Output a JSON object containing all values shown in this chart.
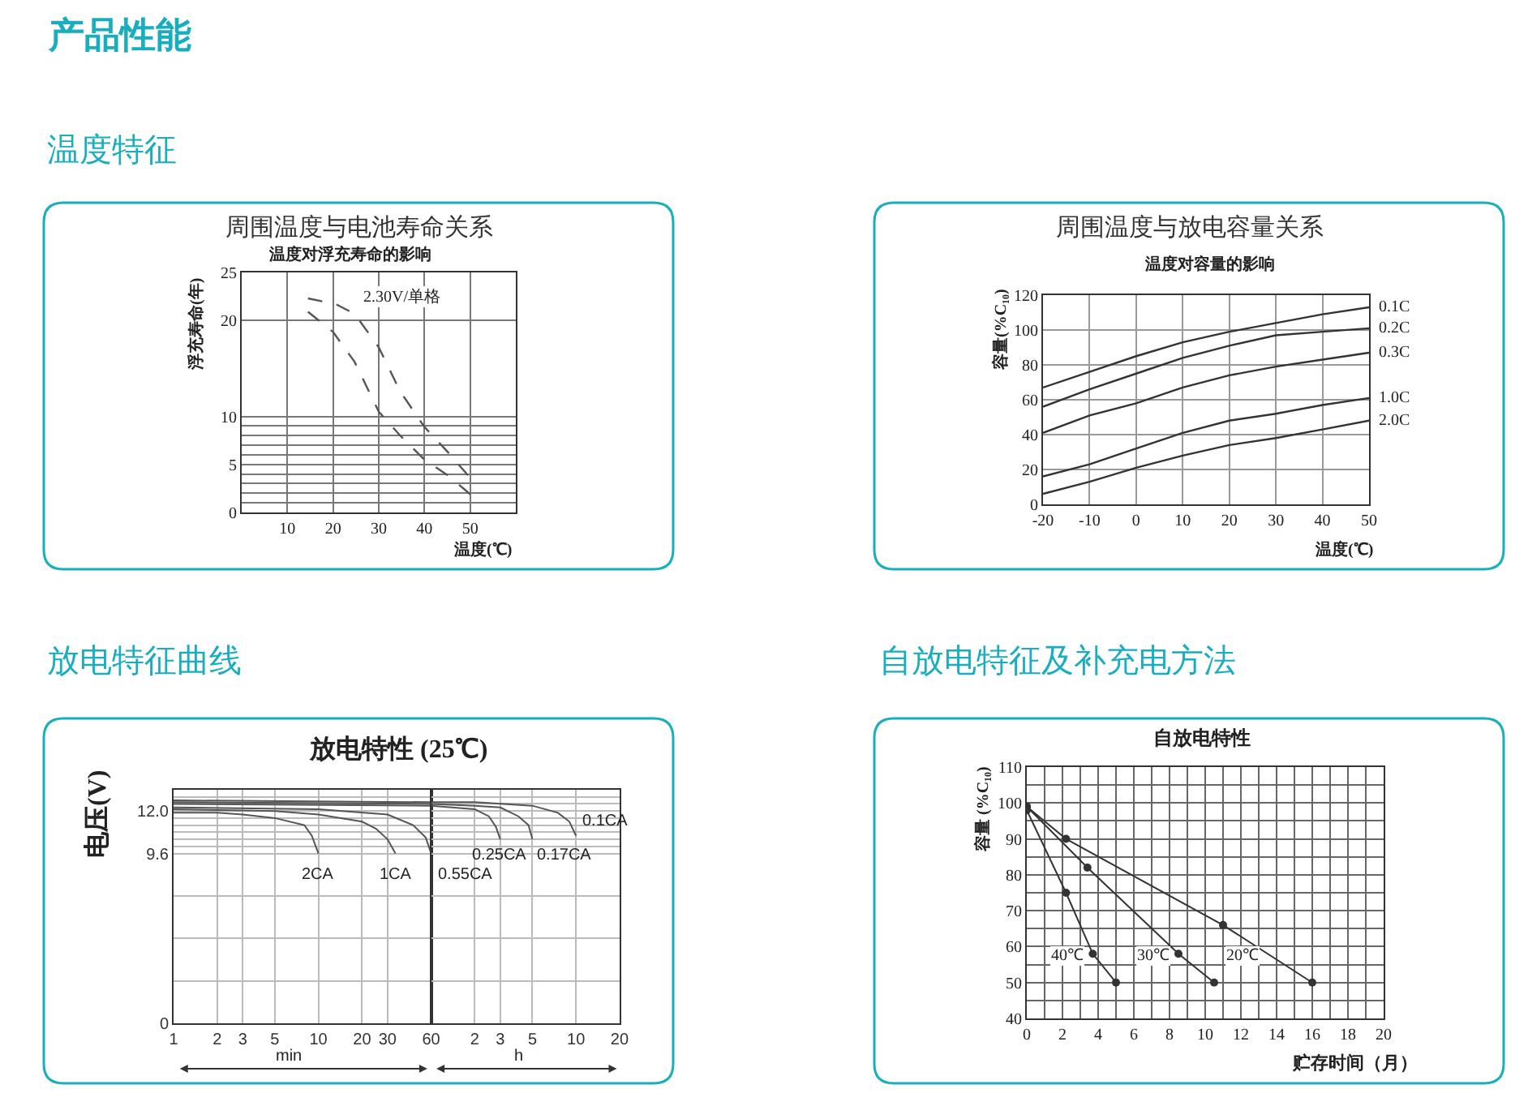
{
  "chart_data": [
    {
      "type": "line",
      "title": "周围温度与电池寿命关系",
      "subtitle": "温度对浮充寿命的影响",
      "xlabel": "温度(℃)",
      "ylabel": "浮充寿命(年)",
      "annotations": [
        "产品性能",
        "温度特征"
      ],
      "series": [
        {
          "name": "2.30V/单格",
          "color": "#555555",
          "x": [
            14.5,
            20.6,
            24.7,
            30,
            34.7,
            40,
            45.3,
            50
          ],
          "values": [
            22.3,
            21.7,
            20.7,
            17.2,
            12.6,
            8.9,
            6.2,
            3.6
          ]
        },
        {
          "color": "#555555",
          "x": [
            14.5,
            20,
            24.7,
            30,
            34.7,
            40,
            45.3,
            50
          ],
          "values": [
            20.9,
            18.8,
            15.7,
            10.5,
            8.0,
            5.5,
            3.8,
            1.9
          ]
        }
      ],
      "xlim": [
        0,
        60
      ],
      "xticks": [
        10,
        20,
        30,
        40,
        50
      ],
      "ylim": [
        0,
        25
      ],
      "yticks": [
        0,
        {
          "value": 1,
          "label": null
        },
        {
          "value": 2,
          "label": null
        },
        {
          "value": 3,
          "label": null
        },
        {
          "value": 4,
          "label": null
        },
        5,
        {
          "value": 6,
          "label": null
        },
        {
          "value": 7,
          "label": null
        },
        {
          "value": 8,
          "label": null
        },
        {
          "value": 9,
          "label": null
        },
        10,
        20,
        25
      ],
      "grid": true,
      "line_style": "dashed"
    },
    {
      "type": "line",
      "title": "周围温度与放电容量关系",
      "subtitle": "温度对容量的影响",
      "xlabel": "温度(℃)",
      "ylabel": "容量(%C₁₀)",
      "x": [
        -20,
        -10,
        0,
        10,
        20,
        30,
        40,
        50
      ],
      "series": [
        {
          "name": "0.1C",
          "color": "#333333",
          "values": [
            67,
            76,
            85,
            93,
            99,
            104,
            109,
            113
          ]
        },
        {
          "name": "0.2C",
          "color": "#333333",
          "values": [
            56,
            66,
            75,
            84,
            91,
            97,
            99,
            101
          ]
        },
        {
          "name": "0.3C",
          "color": "#333333",
          "values": [
            41,
            51,
            58,
            67,
            74,
            79,
            83,
            87
          ]
        },
        {
          "name": "1.0C",
          "color": "#333333",
          "values": [
            16,
            23,
            32,
            41,
            48,
            52,
            57,
            61
          ]
        },
        {
          "name": "2.0C",
          "color": "#333333",
          "values": [
            6,
            13,
            21,
            28,
            34,
            38,
            43,
            48
          ]
        }
      ],
      "xlim": [
        -20,
        50
      ],
      "xticks": [
        -20,
        -10,
        0,
        10,
        20,
        30,
        40,
        50
      ],
      "ylim": [
        0,
        120
      ],
      "yticks": [
        0,
        20,
        40,
        60,
        80,
        100,
        120
      ],
      "grid": true
    },
    {
      "type": "line",
      "title": "放电特性 (25℃)",
      "ylabel": "电压(V)",
      "xlabel": "min",
      "annotations": [
        "放电特征曲线"
      ],
      "series": [
        {
          "name": "2CA",
          "color": "#555555",
          "x": [
            1,
            2,
            3,
            5,
            8,
            9,
            10
          ],
          "values": [
            11.9,
            11.9,
            11.8,
            11.6,
            11.2,
            10.6,
            9.6
          ]
        },
        {
          "name": "1CA",
          "color": "#555555",
          "x": [
            1,
            5,
            10,
            20,
            25,
            30,
            34
          ],
          "values": [
            12.1,
            12.0,
            11.8,
            11.4,
            11.0,
            10.4,
            9.6
          ]
        },
        {
          "name": "0.55CA",
          "color": "#555555",
          "x": [
            1,
            10,
            30,
            45,
            55,
            60
          ],
          "values": [
            12.2,
            12.1,
            11.8,
            11.2,
            10.5,
            9.6
          ]
        },
        {
          "color": "#555555",
          "x": [
            1,
            60
          ],
          "values": [
            12.4,
            12.3
          ]
        },
        {
          "color": "#555555",
          "x": [
            1,
            60
          ],
          "values": [
            12.5,
            12.4
          ]
        },
        {
          "color": "#555555",
          "x": [
            1,
            60
          ],
          "values": [
            12.6,
            12.5
          ]
        }
      ],
      "log": "x",
      "xlim": [
        1,
        60
      ],
      "xticks": [
        1,
        2,
        3,
        5,
        10,
        20,
        30,
        60
      ],
      "ylim": [
        0,
        13.2
      ],
      "yticks": [
        0,
        {
          "value": 2.4,
          "label": null
        },
        {
          "value": 4.8,
          "label": null
        },
        {
          "value": 7.2,
          "label": null
        },
        9.6,
        {
          "value": 10,
          "label": null
        },
        {
          "value": 10.4,
          "label": null
        },
        {
          "value": 10.8,
          "label": null
        },
        {
          "value": 11.2,
          "label": null
        },
        {
          "value": 11.6,
          "label": null
        },
        {
          "value": 12,
          "label": "12.0"
        },
        {
          "value": 12.4,
          "label": null
        },
        {
          "value": 12.8,
          "label": null
        }
      ],
      "grid": true
    },
    {
      "type": "line",
      "xlabel": "h",
      "series": [
        {
          "name": "0.25CA",
          "color": "#555555",
          "x": [
            1,
            2,
            2.5,
            2.8,
            3
          ],
          "values": [
            12.3,
            12.1,
            11.7,
            11.1,
            10.4
          ]
        },
        {
          "name": "0.17CA",
          "color": "#555555",
          "x": [
            1,
            2,
            3,
            4,
            4.7,
            5
          ],
          "values": [
            12.4,
            12.3,
            12.2,
            11.7,
            11.2,
            10.4
          ]
        },
        {
          "name": "0.1CA",
          "color": "#555555",
          "x": [
            1,
            2,
            5,
            7.5,
            9,
            10
          ],
          "values": [
            12.5,
            12.5,
            12.3,
            11.9,
            11.4,
            10.6
          ]
        }
      ],
      "log": "x",
      "xlim": [
        1,
        20
      ],
      "xticks": [
        2,
        3,
        5,
        10,
        20
      ],
      "ylim": [
        0,
        13.2
      ],
      "yticks": [
        0,
        {
          "value": 2.4,
          "label": null
        },
        {
          "value": 4.8,
          "label": null
        },
        {
          "value": 7.2,
          "label": null
        },
        {
          "value": 9.6,
          "label": null
        },
        {
          "value": 10,
          "label": null
        },
        {
          "value": 10.4,
          "label": null
        },
        {
          "value": 10.8,
          "label": null
        },
        {
          "value": 11.2,
          "label": null
        },
        {
          "value": 11.6,
          "label": null
        },
        {
          "value": 12,
          "label": null
        },
        {
          "value": 12.4,
          "label": null
        },
        {
          "value": 12.8,
          "label": null
        }
      ],
      "tick_labels": "x",
      "grid": true
    },
    {
      "type": "line",
      "title": "自放电特性",
      "xlabel": "贮存时间（月）",
      "ylabel": "容量 (%C₁₀)",
      "annotations": [
        "自放电特征及补充电方法"
      ],
      "series": [
        {
          "name": "40℃",
          "color": "#333333",
          "x": [
            0,
            2.2,
            3.7,
            5
          ],
          "values": [
            98,
            75,
            58,
            50
          ]
        },
        {
          "name": "30℃",
          "color": "#333333",
          "x": [
            0,
            3.4,
            8.5,
            10.5
          ],
          "values": [
            99,
            82,
            58,
            50
          ]
        },
        {
          "name": "20℃",
          "color": "#333333",
          "x": [
            0,
            2.2,
            11,
            16
          ],
          "values": [
            99,
            90,
            66,
            50
          ]
        }
      ],
      "xlim": [
        0,
        20
      ],
      "xticks": [
        0,
        {
          "value": 1,
          "label": null
        },
        2,
        {
          "value": 3,
          "label": null
        },
        4,
        {
          "value": 5,
          "label": null
        },
        6,
        {
          "value": 7,
          "label": null
        },
        8,
        {
          "value": 9,
          "label": null
        },
        10,
        {
          "value": 11,
          "label": null
        },
        12,
        {
          "value": 13,
          "label": null
        },
        14,
        {
          "value": 15,
          "label": null
        },
        16,
        {
          "value": 17,
          "label": null
        },
        18,
        {
          "value": 19,
          "label": null
        },
        20
      ],
      "ylim": [
        40,
        110
      ],
      "yticks": [
        40,
        {
          "value": 45,
          "label": null
        },
        50,
        {
          "value": 55,
          "label": null
        },
        60,
        {
          "value": 65,
          "label": null
        },
        70,
        {
          "value": 75,
          "label": null
        },
        80,
        {
          "value": 85,
          "label": null
        },
        90,
        {
          "value": 95,
          "label": null
        },
        100,
        {
          "value": 105,
          "label": null
        },
        110
      ],
      "grid": true,
      "marker": "circle"
    }
  ]
}
